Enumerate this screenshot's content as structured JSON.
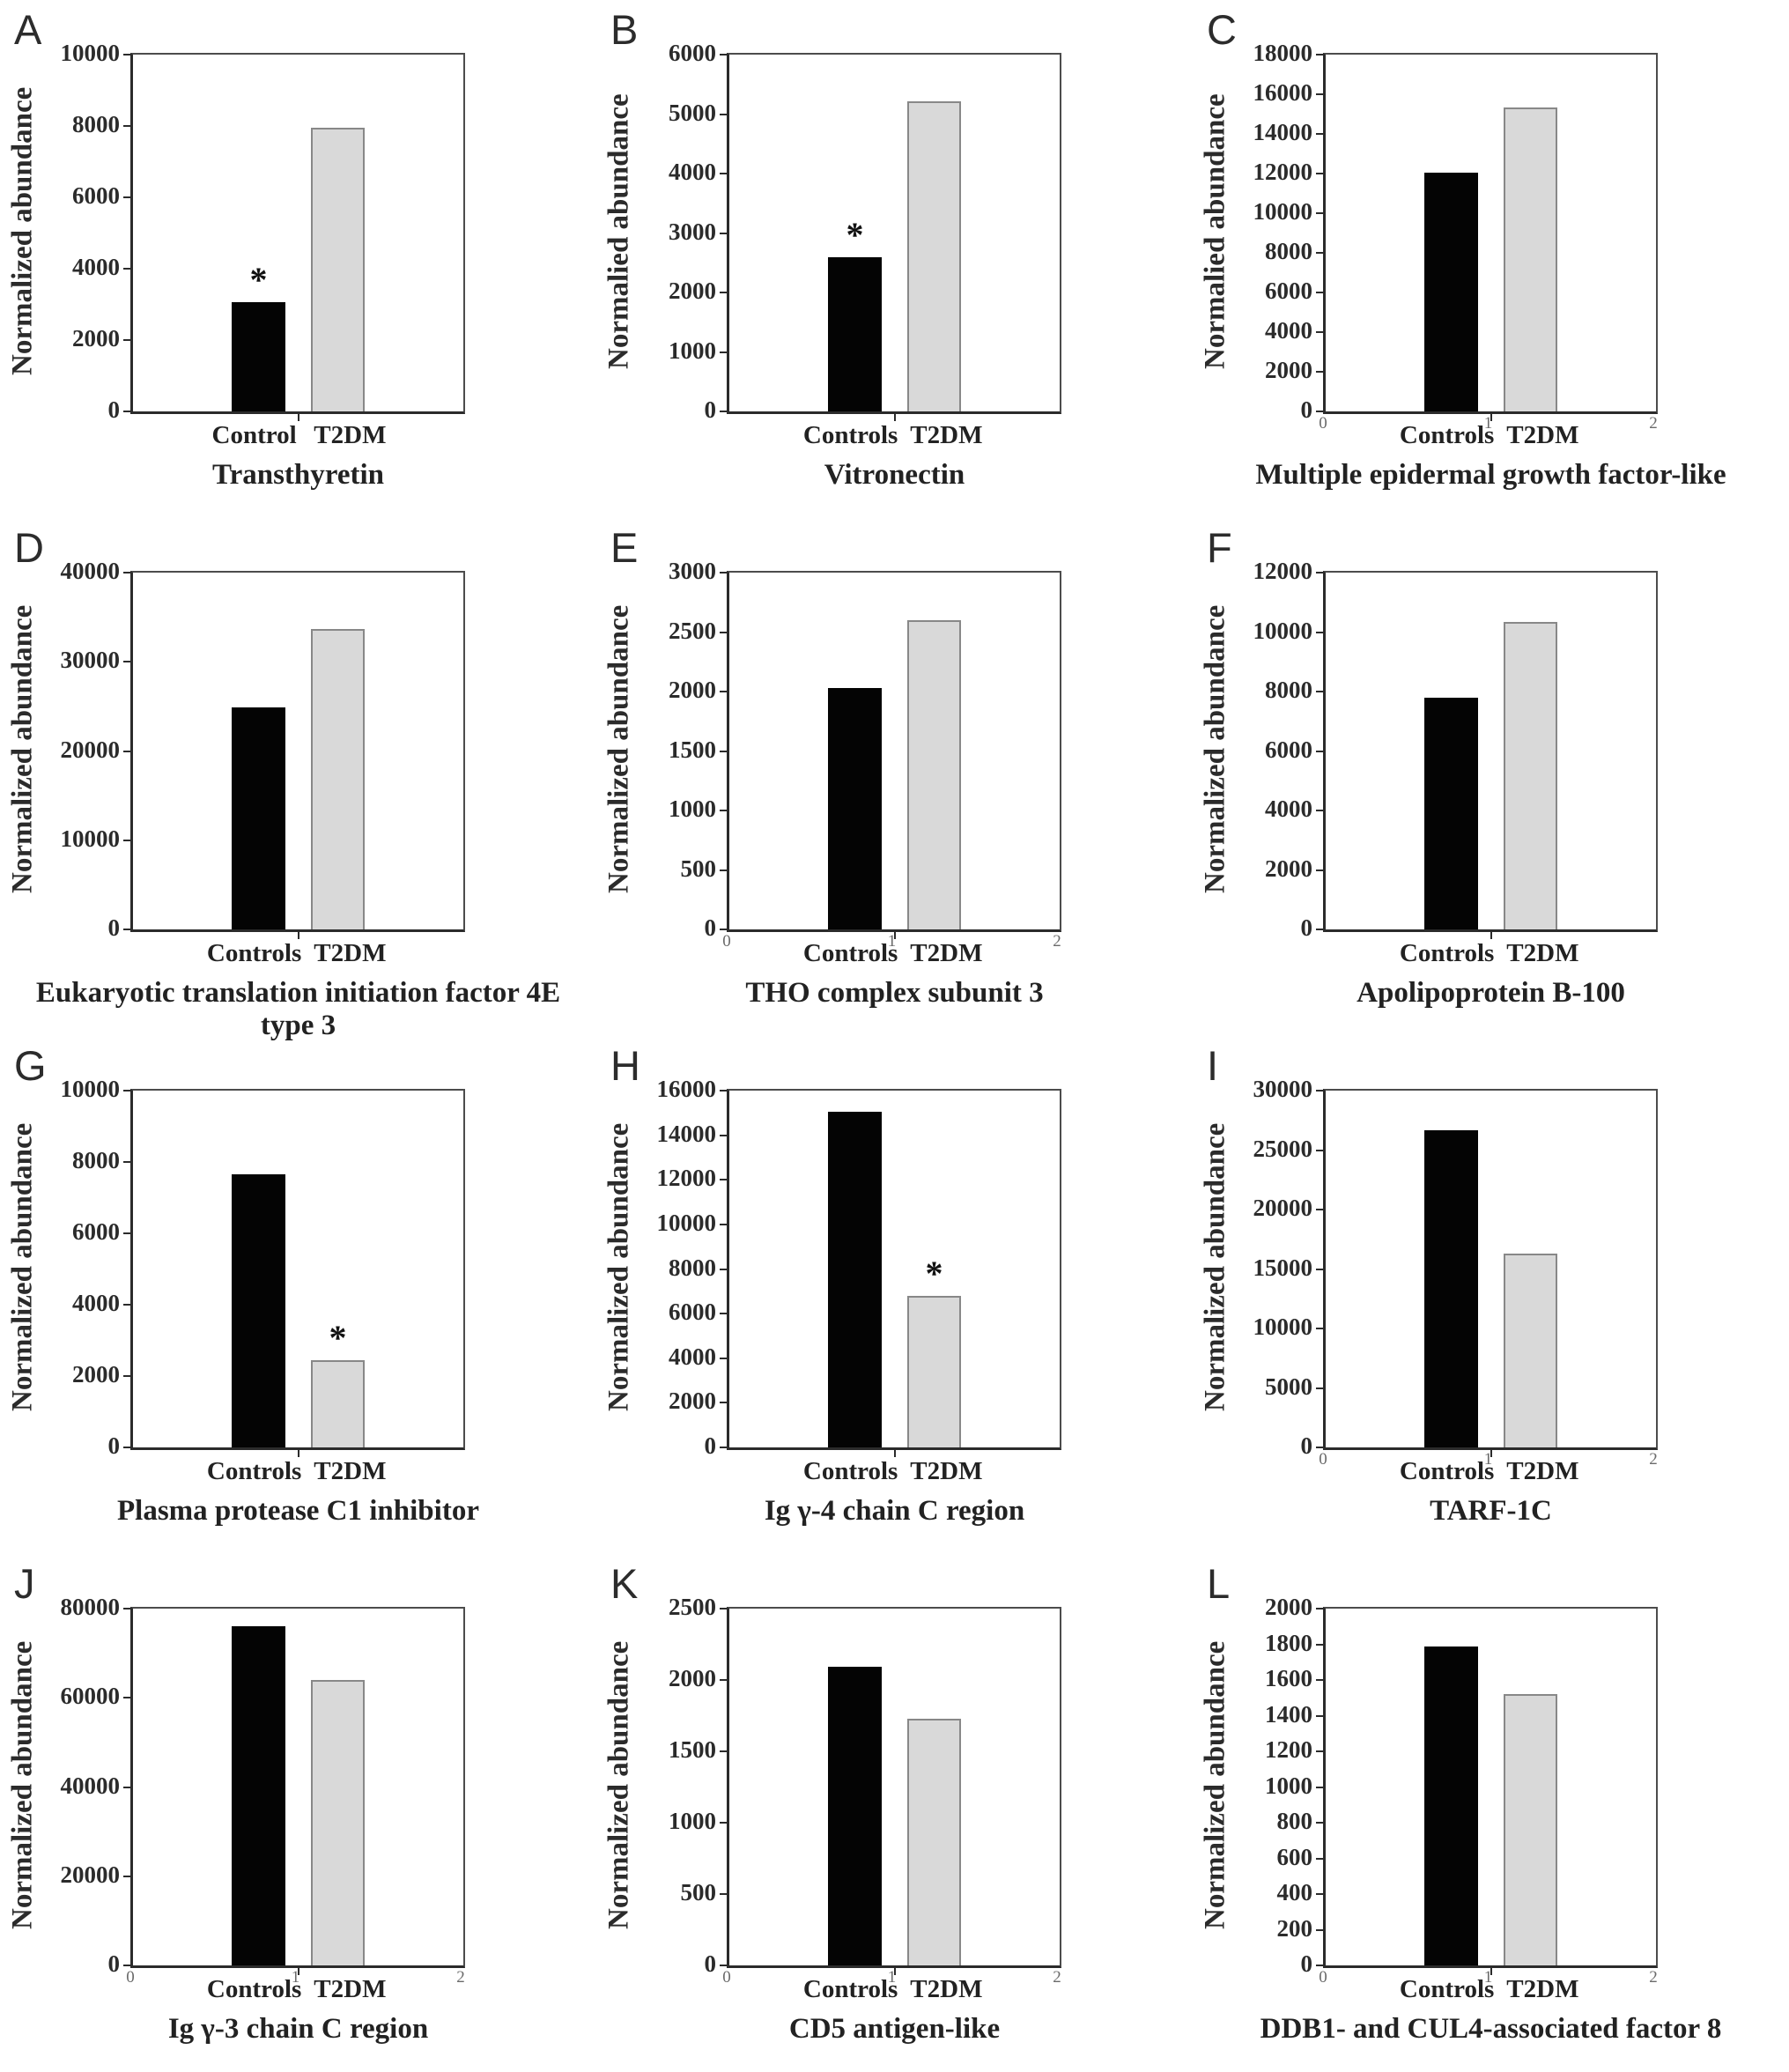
{
  "figure": {
    "significance_symbol": "*",
    "bar_colors": {
      "controls": "#040404",
      "t2dm_fill": "#d9d9d9",
      "t2dm_border": "#888888"
    },
    "axis_color": "#2b2b2b",
    "background": "#ffffff"
  },
  "chart_data": [
    {
      "type": "bar",
      "panel": "A",
      "title": "Transthyretin",
      "ylabel": "Normalized abundance",
      "categories": [
        "Control",
        "T2DM"
      ],
      "values": [
        3050,
        7950
      ],
      "ylim": [
        0,
        10000
      ],
      "yticks": [
        0,
        2000,
        4000,
        6000,
        8000,
        10000
      ],
      "star_on": 0,
      "x_axis_numbers": null
    },
    {
      "type": "bar",
      "panel": "B",
      "title": "Vitronectin",
      "ylabel": "Normalied abundance",
      "categories": [
        "Controls",
        "T2DM"
      ],
      "values": [
        2600,
        5220
      ],
      "ylim": [
        0,
        6000
      ],
      "yticks": [
        0,
        1000,
        2000,
        3000,
        4000,
        5000,
        6000
      ],
      "star_on": 0,
      "x_axis_numbers": null
    },
    {
      "type": "bar",
      "panel": "C",
      "title": "Multiple epidermal growth factor-like",
      "ylabel": "Normalied abundance",
      "categories": [
        "Controls",
        "T2DM"
      ],
      "values": [
        12050,
        15350
      ],
      "ylim": [
        0,
        18000
      ],
      "yticks": [
        0,
        2000,
        4000,
        6000,
        8000,
        10000,
        12000,
        14000,
        16000,
        18000
      ],
      "star_on": null,
      "x_axis_numbers": [
        "0",
        "1",
        "2"
      ]
    },
    {
      "type": "bar",
      "panel": "D",
      "title": "Eukaryotic translation initiation factor 4E type 3",
      "ylabel": "Normalized abundance",
      "categories": [
        "Controls",
        "T2DM"
      ],
      "values": [
        24900,
        33700
      ],
      "ylim": [
        0,
        40000
      ],
      "yticks": [
        0,
        10000,
        20000,
        30000,
        40000
      ],
      "star_on": null,
      "x_axis_numbers": null
    },
    {
      "type": "bar",
      "panel": "E",
      "title": "THO complex subunit 3",
      "ylabel": "Normalized abundance",
      "categories": [
        "Controls",
        "T2DM"
      ],
      "values": [
        2030,
        2600
      ],
      "ylim": [
        0,
        3000
      ],
      "yticks": [
        0,
        500,
        1000,
        1500,
        2000,
        2500,
        3000
      ],
      "star_on": null,
      "x_axis_numbers": [
        "0",
        "1",
        "2"
      ]
    },
    {
      "type": "bar",
      "panel": "F",
      "title": "Apolipoprotein B-100",
      "ylabel": "Normalized abundance",
      "categories": [
        "Controls",
        "T2DM"
      ],
      "values": [
        7800,
        10350
      ],
      "ylim": [
        0,
        12000
      ],
      "yticks": [
        0,
        2000,
        4000,
        6000,
        8000,
        10000,
        12000
      ],
      "star_on": null,
      "x_axis_numbers": null
    },
    {
      "type": "bar",
      "panel": "G",
      "title": "Plasma protease C1 inhibitor",
      "ylabel": "Normalized abundance",
      "categories": [
        "Controls",
        "T2DM"
      ],
      "values": [
        7650,
        2450
      ],
      "ylim": [
        0,
        10000
      ],
      "yticks": [
        0,
        2000,
        4000,
        6000,
        8000,
        10000
      ],
      "star_on": 1,
      "x_axis_numbers": null
    },
    {
      "type": "bar",
      "panel": "H",
      "title": "Ig γ-4 chain C region",
      "ylabel": "Normalized abundance",
      "categories": [
        "Controls",
        "T2DM"
      ],
      "values": [
        15050,
        6800
      ],
      "ylim": [
        0,
        16000
      ],
      "yticks": [
        0,
        2000,
        4000,
        6000,
        8000,
        10000,
        12000,
        14000,
        16000
      ],
      "star_on": 1,
      "x_axis_numbers": null
    },
    {
      "type": "bar",
      "panel": "I",
      "title": "TARF-1C",
      "ylabel": "Normalized abundance",
      "categories": [
        "Controls",
        "T2DM"
      ],
      "values": [
        26700,
        16300
      ],
      "ylim": [
        0,
        30000
      ],
      "yticks": [
        0,
        5000,
        10000,
        15000,
        20000,
        25000,
        30000
      ],
      "star_on": null,
      "x_axis_numbers": [
        "0",
        "1",
        "2"
      ]
    },
    {
      "type": "bar",
      "panel": "J",
      "title": "Ig γ-3 chain C region",
      "ylabel": "Normalized abundance",
      "categories": [
        "Controls",
        "T2DM"
      ],
      "values": [
        76000,
        64000
      ],
      "ylim": [
        0,
        80000
      ],
      "yticks": [
        0,
        20000,
        40000,
        60000,
        80000
      ],
      "star_on": null,
      "x_axis_numbers": [
        "0",
        "1",
        "2"
      ]
    },
    {
      "type": "bar",
      "panel": "K",
      "title": "CD5 antigen-like",
      "ylabel": "Normalized abundance",
      "categories": [
        "Controls",
        "T2DM"
      ],
      "values": [
        2090,
        1730
      ],
      "ylim": [
        0,
        2500
      ],
      "yticks": [
        0,
        500,
        1000,
        1500,
        2000,
        2500
      ],
      "star_on": null,
      "x_axis_numbers": [
        "0",
        "1",
        "2"
      ]
    },
    {
      "type": "bar",
      "panel": "L",
      "title": "DDB1- and CUL4-associated factor 8",
      "ylabel": "Normalized abundance",
      "categories": [
        "Controls",
        "T2DM"
      ],
      "values": [
        1790,
        1520
      ],
      "ylim": [
        0,
        2000
      ],
      "yticks": [
        0,
        200,
        400,
        600,
        800,
        1000,
        1200,
        1400,
        1600,
        1800,
        2000
      ],
      "star_on": null,
      "x_axis_numbers": [
        "0",
        "1",
        "2"
      ]
    }
  ]
}
